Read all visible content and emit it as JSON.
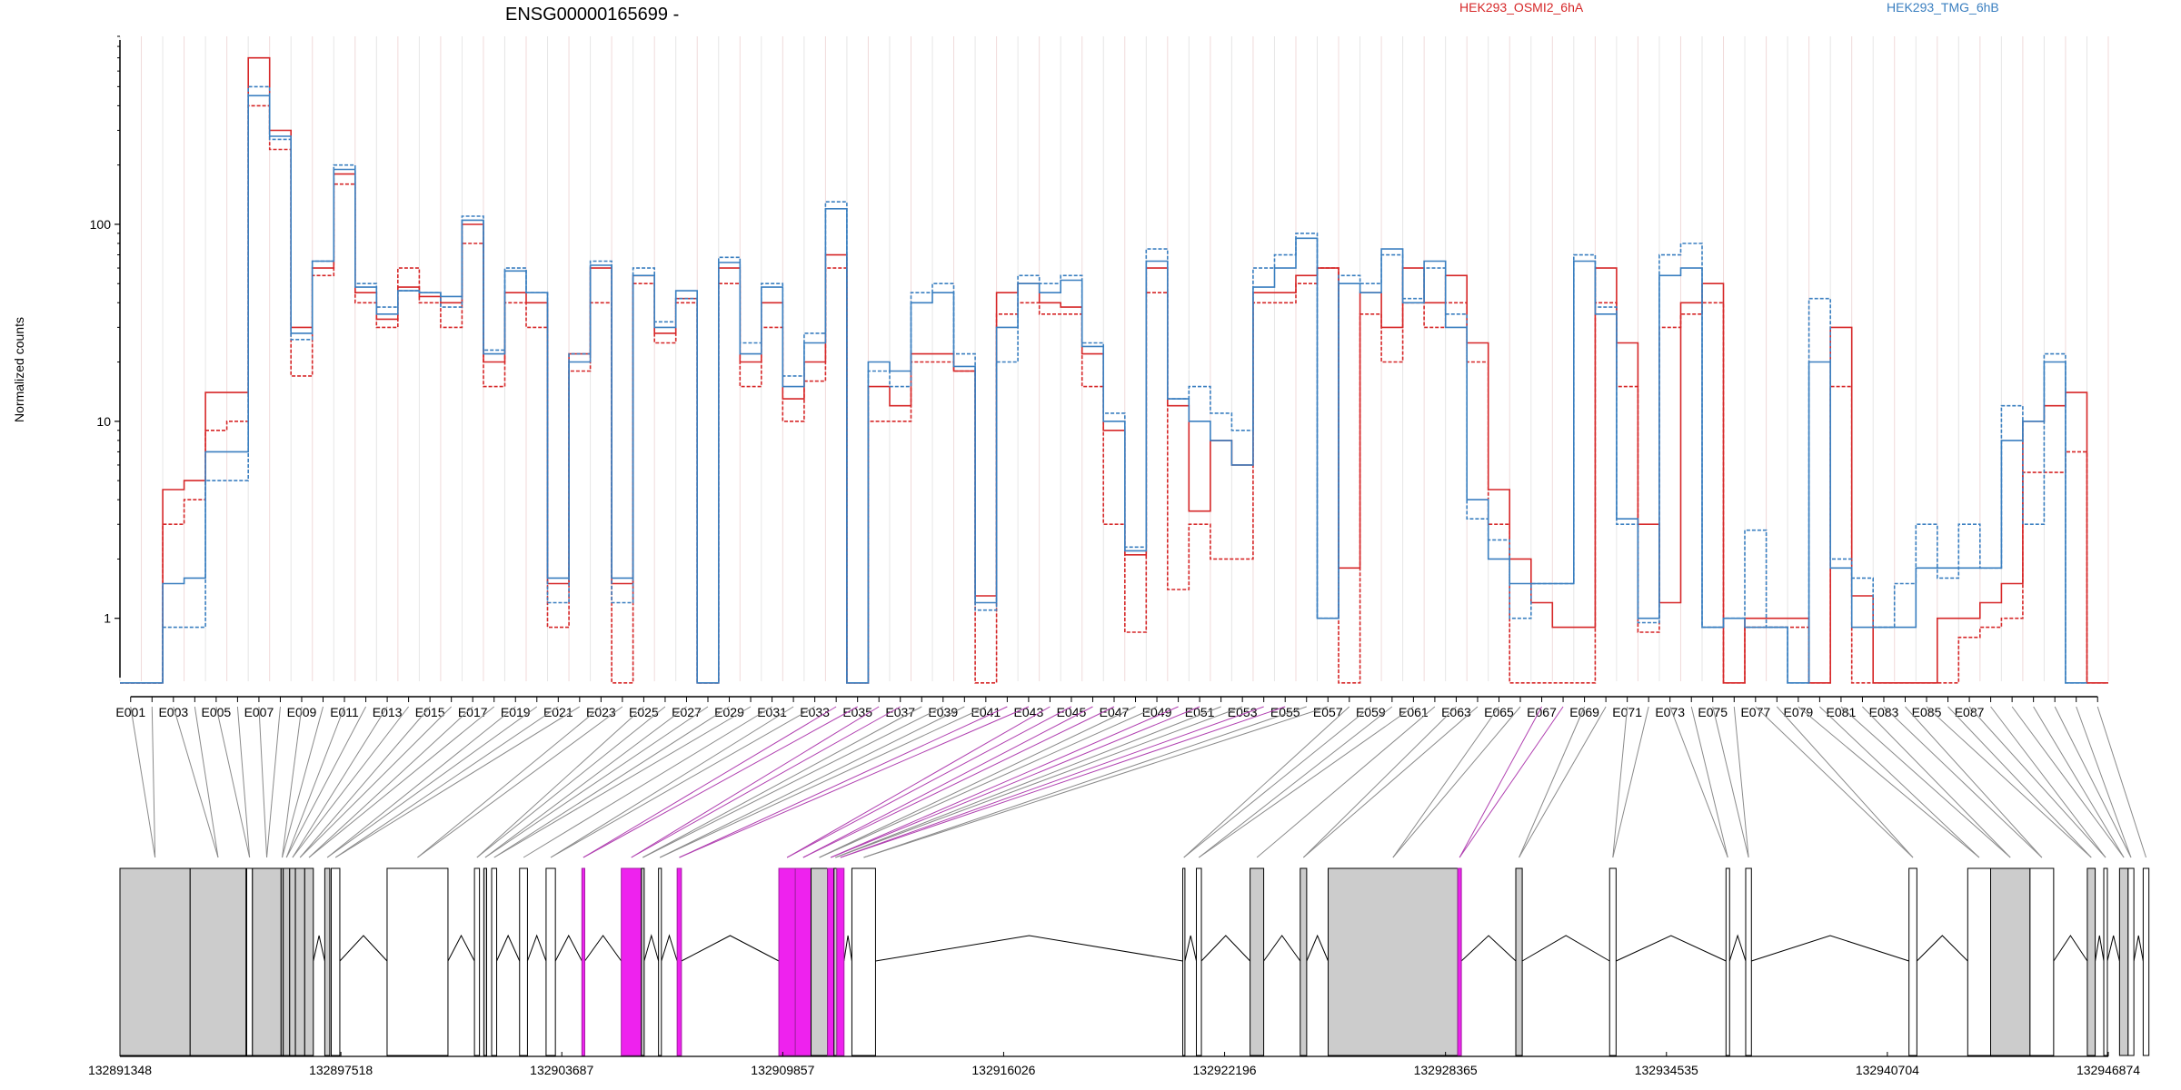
{
  "chart_data": {
    "type": "line",
    "title": "ENSG00000165699 -",
    "ylabel": "Normalized counts",
    "y_scale": "log",
    "y_ticks": [
      1,
      10,
      100
    ],
    "y_tick_labels": [
      "1",
      "10",
      "100"
    ],
    "ylim": [
      0.5,
      900
    ],
    "grid": "vertical lines at exon boundaries",
    "legend_placement": "top-right",
    "colors": {
      "HEK293_OSMI2_6hA": "#d62728",
      "HEK293_TMG_6hB": "#3a7fc0",
      "highlight": "#ee22ee",
      "exon_fill": "#cccccc"
    },
    "legend": [
      {
        "name": "HEK293_OSMI2_6hA",
        "color": "#d62728"
      },
      {
        "name": "HEK293_TMG_6hB",
        "color": "#3a7fc0"
      }
    ],
    "exon_tick_labels": [
      "E001",
      "E003",
      "E005",
      "E007",
      "E009",
      "E011",
      "E013",
      "E015",
      "E017",
      "E019",
      "E021",
      "E023",
      "E025",
      "E027",
      "E029",
      "E031",
      "E033",
      "E035",
      "E037",
      "E039",
      "E041",
      "E043",
      "E045",
      "E047",
      "E049",
      "E051",
      "E053",
      "E055",
      "E057",
      "E059",
      "E061",
      "E063",
      "E065",
      "E067",
      "E069",
      "E071",
      "E073",
      "E075",
      "E077",
      "E079",
      "E081",
      "E083",
      "E085",
      "E087"
    ],
    "genomic_axis_labels": [
      "132891348",
      "132897518",
      "132903687",
      "132909857",
      "132916026",
      "132922196",
      "132928365",
      "132934535",
      "132940704",
      "132946874"
    ],
    "genomic_range": [
      132891348,
      132946874
    ],
    "series": [
      {
        "name": "HEK293_OSMI2_6hA",
        "color": "#d62728",
        "style": "solid",
        "values": [
          0.47,
          0.47,
          4.5,
          5,
          14,
          14,
          700,
          300,
          30,
          60,
          180,
          45,
          33,
          48,
          43,
          40,
          100,
          20,
          45,
          40,
          1.5,
          22,
          60,
          1.5,
          55,
          28,
          42,
          0.47,
          60,
          20,
          40,
          13,
          20,
          70,
          0.47,
          15,
          12,
          22,
          22,
          18,
          1.3,
          45,
          50,
          40,
          38,
          22,
          9,
          2.1,
          60,
          12,
          3.5,
          8,
          6,
          45,
          45,
          55,
          60,
          1.8,
          45,
          30,
          60,
          40,
          55,
          25,
          4.5,
          2,
          1.2,
          0.9,
          0.9,
          60,
          25,
          3,
          1.2,
          40,
          50,
          0.47,
          1,
          1,
          1,
          0.47,
          30,
          1.3,
          0.47,
          0.47,
          0.47,
          1,
          1,
          1.2,
          1.5,
          10,
          12,
          14,
          0.47
        ]
      },
      {
        "name": "HEK293_OSMI2_6hA",
        "color": "#d62728",
        "style": "dashed",
        "values": [
          0.47,
          0.47,
          3,
          4,
          9,
          10,
          400,
          240,
          17,
          55,
          160,
          40,
          30,
          60,
          40,
          30,
          80,
          15,
          40,
          30,
          0.9,
          18,
          40,
          0.47,
          50,
          25,
          40,
          0.47,
          50,
          15,
          30,
          10,
          16,
          60,
          0.47,
          10,
          10,
          20,
          20,
          18,
          0.47,
          35,
          40,
          35,
          35,
          15,
          3,
          0.85,
          45,
          1.4,
          3,
          2,
          2,
          40,
          40,
          50,
          60,
          0.47,
          35,
          20,
          40,
          30,
          40,
          20,
          3,
          0.47,
          0.47,
          0.47,
          0.47,
          40,
          15,
          0.85,
          30,
          35,
          40,
          0.47,
          0.9,
          0.9,
          0.9,
          0.47,
          15,
          0.47,
          0.47,
          0.47,
          0.47,
          0.47,
          0.8,
          0.9,
          1,
          5.5,
          5.5,
          7,
          0.47
        ]
      },
      {
        "name": "HEK293_TMG_6hB",
        "color": "#3a7fc0",
        "style": "solid",
        "values": [
          0.47,
          0.47,
          1.5,
          1.6,
          7,
          7,
          450,
          280,
          28,
          65,
          190,
          48,
          35,
          46,
          45,
          43,
          105,
          22,
          58,
          45,
          1.6,
          20,
          62,
          1.6,
          55,
          30,
          46,
          0.47,
          64,
          22,
          48,
          15,
          25,
          120,
          0.47,
          20,
          18,
          40,
          45,
          19,
          1.2,
          30,
          50,
          45,
          52,
          24,
          10,
          2.2,
          65,
          13,
          10,
          8,
          6,
          48,
          60,
          85,
          1,
          50,
          45,
          75,
          40,
          65,
          30,
          4,
          2,
          1.5,
          1.5,
          1.5,
          65,
          35,
          3.2,
          1,
          55,
          60,
          0.9,
          1,
          0.9,
          0.9,
          0.47,
          20,
          1.8,
          0.9,
          0.9,
          0.9,
          1.8,
          1.8,
          1.8,
          1.8,
          8,
          10,
          20,
          0.47
        ]
      },
      {
        "name": "HEK293_TMG_6hB",
        "color": "#3a7fc0",
        "style": "dashed",
        "values": [
          0.47,
          0.47,
          0.9,
          0.9,
          5,
          5,
          500,
          270,
          26,
          65,
          200,
          50,
          38,
          46,
          45,
          38,
          110,
          23,
          60,
          45,
          1.2,
          22,
          65,
          1.2,
          60,
          32,
          42,
          0.47,
          68,
          25,
          50,
          17,
          28,
          130,
          0.47,
          18,
          15,
          45,
          50,
          22,
          1.1,
          20,
          55,
          50,
          55,
          25,
          11,
          2.3,
          75,
          13,
          15,
          11,
          9,
          60,
          70,
          90,
          1,
          55,
          50,
          70,
          42,
          60,
          35,
          3.2,
          2.5,
          1,
          1.5,
          1.5,
          70,
          38,
          3,
          0.95,
          70,
          80,
          0.9,
          1,
          2.8,
          0.9,
          0.47,
          42,
          2,
          1.6,
          0.9,
          1.5,
          3,
          1.6,
          3,
          1.8,
          12,
          3,
          22,
          0.47
        ]
      }
    ]
  }
}
